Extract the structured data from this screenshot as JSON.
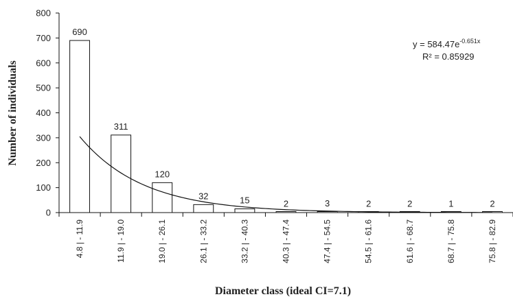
{
  "chart_data": {
    "type": "bar",
    "categories": [
      "4.8 | - 11.9",
      "11.9 | - 19.0",
      "19.0 | - 26.1",
      "26.1 | - 33.2",
      "33.2 | - 40.3",
      "40.3 | - 47.4",
      "47.4 | - 54.5",
      "54.5 | - 61.6",
      "61.6 | - 68.7",
      "68.7 | - 75.8",
      "75.8 | - 82.9"
    ],
    "values": [
      690,
      311,
      120,
      32,
      15,
      2,
      3,
      2,
      2,
      1,
      2
    ],
    "data_labels": [
      "690",
      "311",
      "120",
      "32",
      "15",
      "2",
      "3",
      "2",
      "2",
      "1",
      "2"
    ],
    "xlabel": "Diameter class (ideal CI=7.1)",
    "ylabel": "Number of  individuals",
    "ylim": [
      0,
      800
    ],
    "yticks": [
      0,
      100,
      200,
      300,
      400,
      500,
      600,
      700,
      800
    ],
    "ytick_labels": [
      "0",
      "100",
      "200",
      "300",
      "400",
      "500",
      "600",
      "700",
      "800"
    ],
    "grid": false,
    "bar_fill": "#ffffff",
    "bar_stroke": "#111111",
    "trendline": {
      "type": "exponential",
      "a": 584.47,
      "b": -0.651,
      "equation_base": "y = 584.47e",
      "equation_exp": "-0.651x",
      "r_squared_text": "R² = 0.85929"
    }
  }
}
